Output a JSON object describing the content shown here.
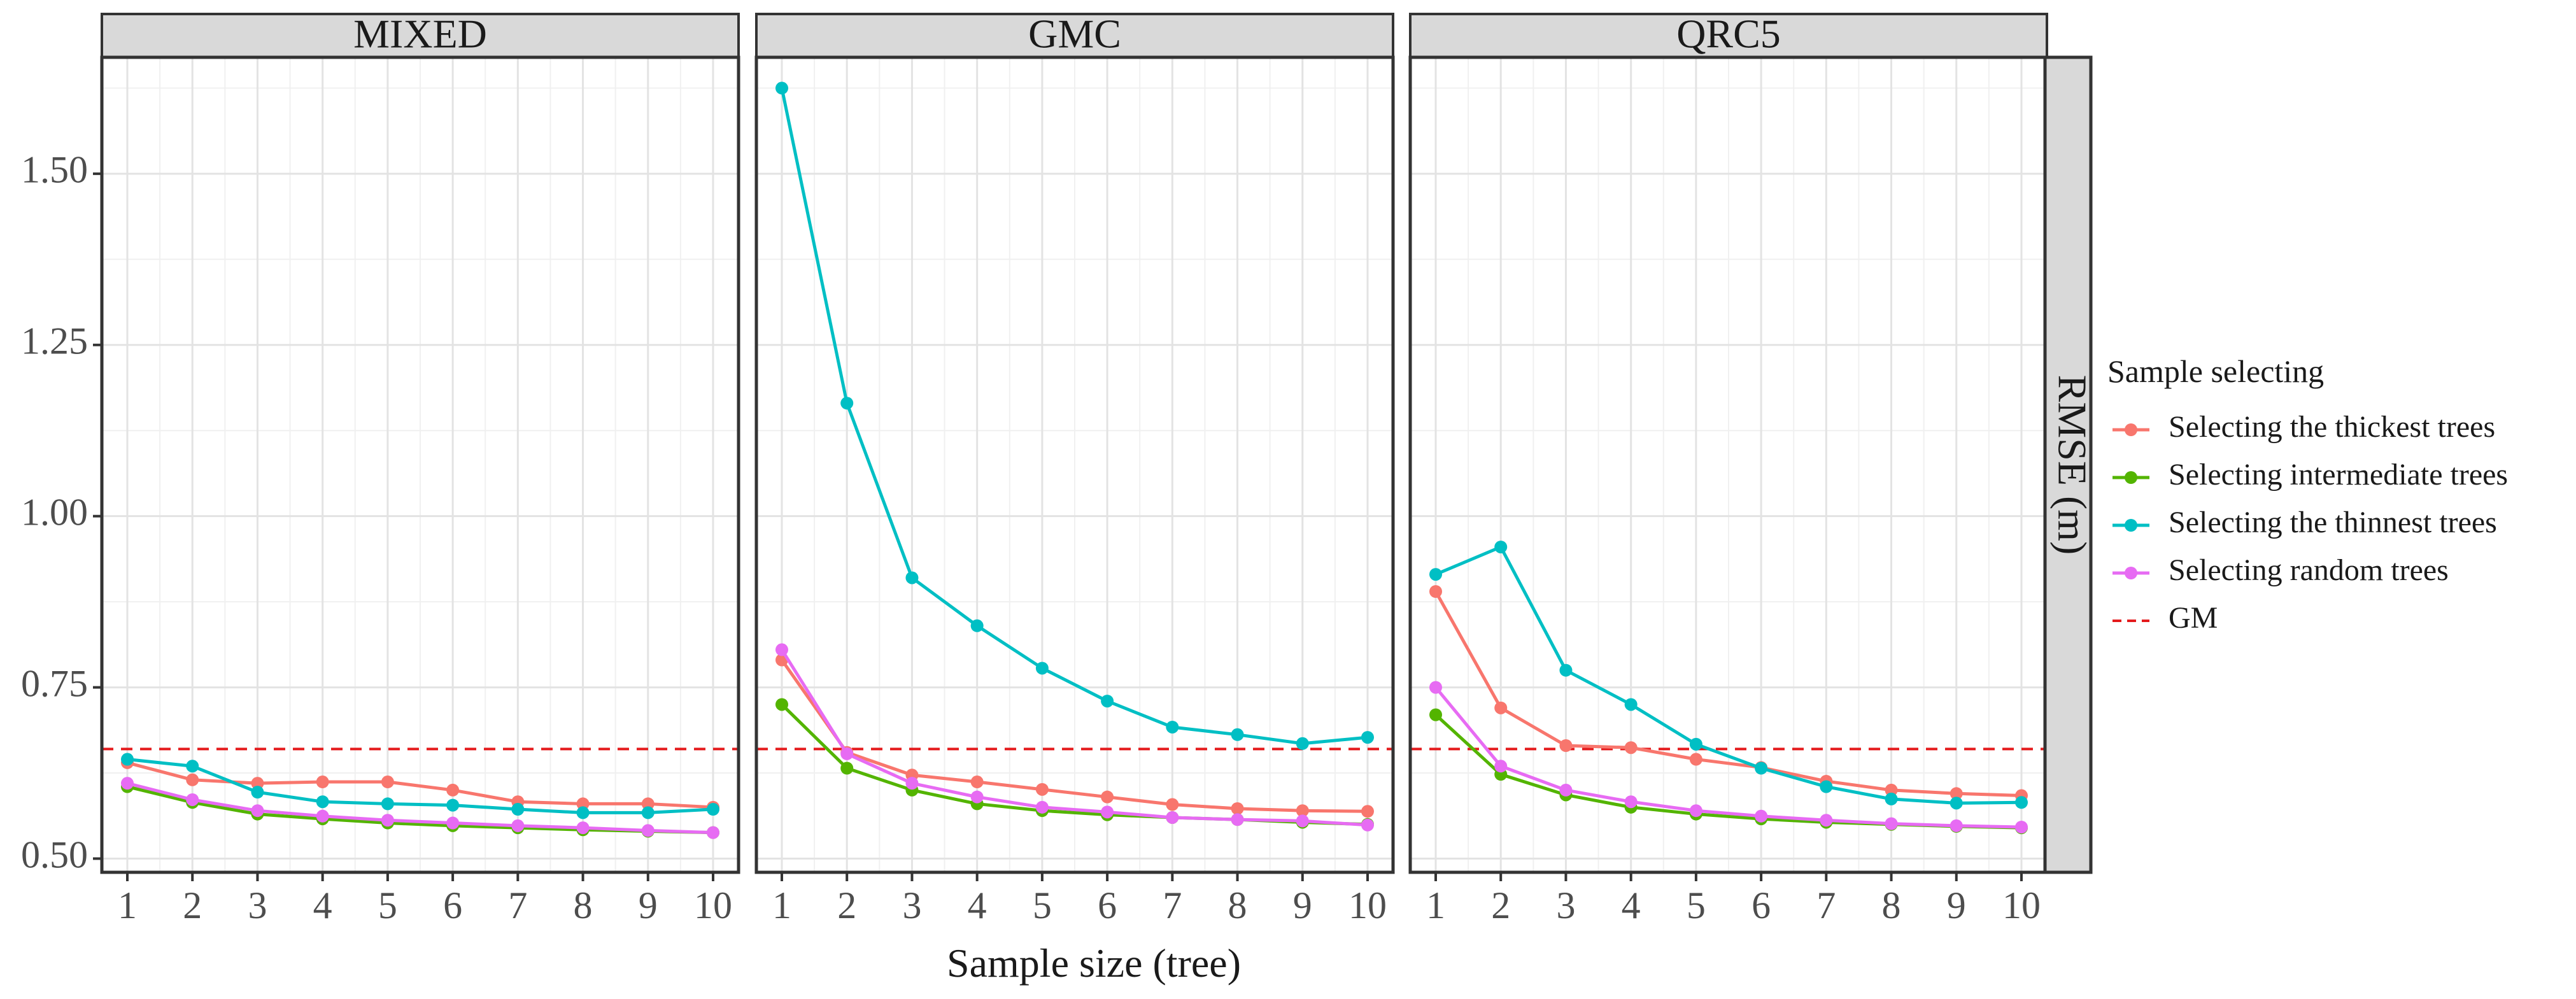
{
  "chart_data": {
    "type": "line",
    "facets": [
      "MIXED",
      "GMC",
      "QRC5"
    ],
    "x": [
      1,
      2,
      3,
      4,
      5,
      6,
      7,
      8,
      9,
      10
    ],
    "xlabel": "Sample size (tree)",
    "ylabel": "RMSE (m)",
    "ylim": [
      0.48,
      1.67
    ],
    "yticks": [
      0.5,
      0.75,
      1.0,
      1.25,
      1.5
    ],
    "ytick_labels": [
      "0.50",
      "0.75",
      "1.00",
      "1.25",
      "1.50"
    ],
    "grid": true,
    "legend": {
      "title": "Sample selecting",
      "position": "right",
      "entries": [
        {
          "key": "thickest",
          "label": "Selecting the thickest trees",
          "color": "#F8766D",
          "style": "line-point"
        },
        {
          "key": "intermediate",
          "label": "Selecting intermediate trees",
          "color": "#53B400",
          "style": "line-point"
        },
        {
          "key": "thinnest",
          "label": "Selecting the thinnest trees",
          "color": "#00BFC4",
          "style": "line-point"
        },
        {
          "key": "random",
          "label": "Selecting random trees",
          "color": "#E76BF3",
          "style": "line-point"
        },
        {
          "key": "gm",
          "label": "GM",
          "color": "#E41A1C",
          "style": "dashed"
        }
      ]
    },
    "reference_line": {
      "name": "GM",
      "y": 0.66,
      "color": "#E41A1C"
    },
    "panels": [
      {
        "facet": "MIXED",
        "series": [
          {
            "key": "thickest",
            "values": [
              0.64,
              0.615,
              0.61,
              0.612,
              0.612,
              0.6,
              0.583,
              0.58,
              0.58,
              0.575
            ]
          },
          {
            "key": "intermediate",
            "values": [
              0.605,
              0.582,
              0.565,
              0.558,
              0.552,
              0.548,
              0.545,
              0.542,
              0.54,
              0.538
            ]
          },
          {
            "key": "thinnest",
            "values": [
              0.645,
              0.635,
              0.597,
              0.583,
              0.58,
              0.578,
              0.572,
              0.567,
              0.567,
              0.572
            ]
          },
          {
            "key": "random",
            "values": [
              0.61,
              0.586,
              0.57,
              0.562,
              0.556,
              0.552,
              0.548,
              0.545,
              0.541,
              0.538
            ]
          }
        ]
      },
      {
        "facet": "GMC",
        "series": [
          {
            "key": "thickest",
            "values": [
              0.79,
              0.655,
              0.622,
              0.612,
              0.601,
              0.59,
              0.579,
              0.573,
              0.57,
              0.569
            ]
          },
          {
            "key": "intermediate",
            "values": [
              0.725,
              0.632,
              0.6,
              0.58,
              0.57,
              0.564,
              0.56,
              0.557,
              0.553,
              0.55
            ]
          },
          {
            "key": "thinnest",
            "values": [
              1.625,
              1.165,
              0.91,
              0.84,
              0.778,
              0.73,
              0.692,
              0.681,
              0.668,
              0.677
            ]
          },
          {
            "key": "random",
            "values": [
              0.805,
              0.653,
              0.61,
              0.59,
              0.575,
              0.568,
              0.56,
              0.557,
              0.555,
              0.549
            ]
          }
        ]
      },
      {
        "facet": "QRC5",
        "series": [
          {
            "key": "thickest",
            "values": [
              0.89,
              0.72,
              0.665,
              0.662,
              0.645,
              0.633,
              0.613,
              0.6,
              0.595,
              0.592
            ]
          },
          {
            "key": "intermediate",
            "values": [
              0.71,
              0.623,
              0.593,
              0.575,
              0.565,
              0.558,
              0.553,
              0.55,
              0.547,
              0.545
            ]
          },
          {
            "key": "thinnest",
            "values": [
              0.915,
              0.955,
              0.775,
              0.725,
              0.667,
              0.632,
              0.605,
              0.587,
              0.581,
              0.582
            ]
          },
          {
            "key": "random",
            "values": [
              0.75,
              0.635,
              0.6,
              0.583,
              0.57,
              0.562,
              0.556,
              0.551,
              0.548,
              0.546
            ]
          }
        ]
      }
    ]
  }
}
